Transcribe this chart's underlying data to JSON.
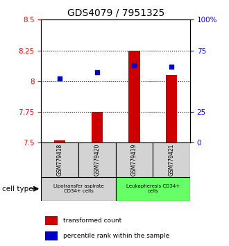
{
  "title": "GDS4079 / 7951325",
  "samples": [
    "GSM779418",
    "GSM779420",
    "GSM779419",
    "GSM779421"
  ],
  "transformed_counts": [
    7.52,
    7.75,
    8.25,
    8.05
  ],
  "percentile_ranks": [
    52,
    57,
    63,
    62
  ],
  "bar_baseline": 7.5,
  "ylim_left": [
    7.5,
    8.5
  ],
  "ylim_right": [
    0,
    100
  ],
  "yticks_left": [
    7.5,
    7.75,
    8.0,
    8.25,
    8.5
  ],
  "ytick_labels_left": [
    "7.5",
    "7.75",
    "8",
    "8.25",
    "8.5"
  ],
  "yticks_right": [
    0,
    25,
    75,
    100
  ],
  "ytick_labels_right": [
    "0",
    "25",
    "75",
    "100%"
  ],
  "hlines": [
    7.75,
    8.0,
    8.25
  ],
  "bar_color": "#cc0000",
  "dot_color": "#0000cc",
  "group1_label": "Lipotransfer aspirate\nCD34+ cells",
  "group2_label": "Leukapheresis CD34+\ncells",
  "group1_color": "#d3d3d3",
  "group2_color": "#66ff66",
  "cell_type_label": "cell type",
  "legend_bar_label": "transformed count",
  "legend_dot_label": "percentile rank within the sample",
  "title_fontsize": 10,
  "tick_fontsize": 7.5
}
